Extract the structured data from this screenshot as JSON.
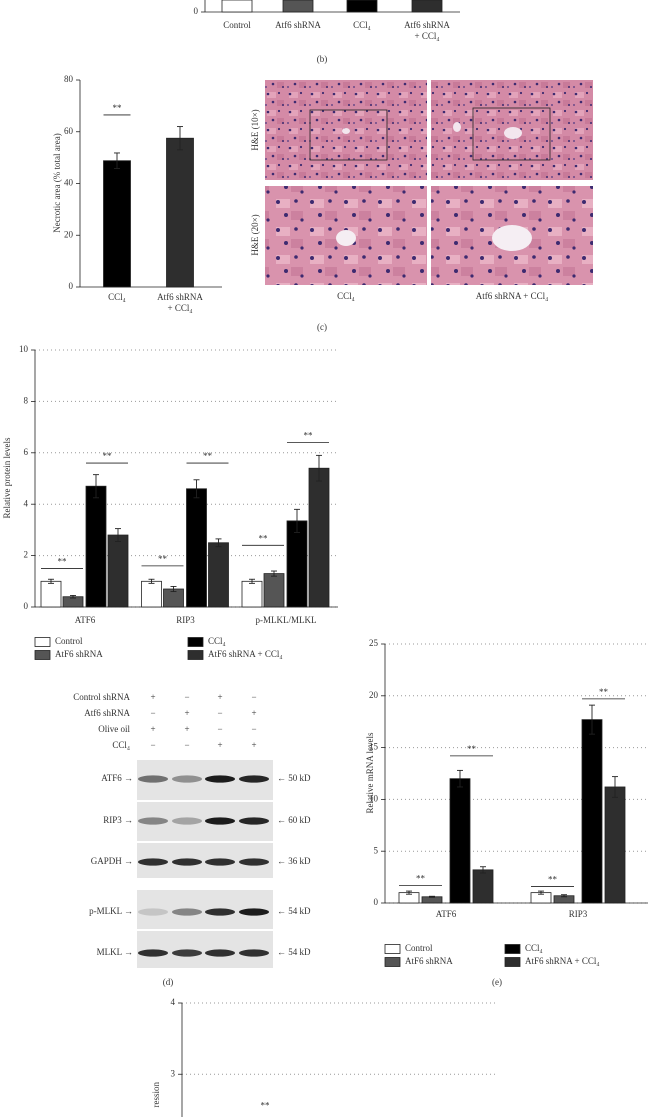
{
  "chart_data": [
    {
      "type": "bar",
      "panel_label": "(b)",
      "categories": [
        [
          "Control"
        ],
        [
          "Atf6 shRNA"
        ],
        [
          "CCl₄"
        ],
        [
          "Atf6 shRNA",
          "+ CCl₄"
        ]
      ],
      "yticks": [
        0
      ],
      "colors": [
        "#ffffff",
        "#555555",
        "#000000",
        "#2e2e2e"
      ]
    },
    {
      "type": "bar",
      "panel_label": "(c)",
      "ylabel": "Necrotic area (% total area)",
      "categories": [
        [
          "CCl₄"
        ],
        [
          "Atf6 shRNA",
          "+ CCl₄"
        ]
      ],
      "values": [
        48.8,
        57.5
      ],
      "errors": [
        3.0,
        4.5
      ],
      "colors": [
        "#000000",
        "#2e2e2e"
      ],
      "ylim": [
        0,
        80
      ],
      "yticks": [
        0,
        20,
        40,
        60,
        80
      ],
      "significance": [
        {
          "label": "**",
          "y": 66.5,
          "bars": [
            0,
            1
          ]
        }
      ]
    },
    {
      "type": "bar",
      "ylabel": "Relative protein levels",
      "categories": [
        "ATF6",
        "RIP3",
        "p-MLKL/MLKL"
      ],
      "series": [
        {
          "name": "Control",
          "color": "#ffffff",
          "values": [
            1.0,
            1.0,
            1.0
          ],
          "errors": [
            0.08,
            0.08,
            0.08
          ]
        },
        {
          "name": "AtF6 shRNA",
          "color": "#555555",
          "values": [
            0.4,
            0.7,
            1.3
          ],
          "errors": [
            0.05,
            0.1,
            0.1
          ]
        },
        {
          "name": "CCl₄",
          "color": "#000000",
          "values": [
            4.7,
            4.6,
            3.35
          ],
          "errors": [
            0.45,
            0.35,
            0.45
          ]
        },
        {
          "name": "AtF6 shRNA + CCl₄",
          "color": "#2e2e2e",
          "values": [
            2.8,
            2.5,
            5.4
          ],
          "errors": [
            0.25,
            0.15,
            0.5
          ]
        }
      ],
      "ylim": [
        0,
        10
      ],
      "yticks": [
        0,
        2,
        4,
        6,
        8,
        10
      ],
      "grid": true,
      "significance": [
        {
          "label": "**",
          "y": 1.5,
          "group": 0,
          "bars": [
            0,
            1
          ]
        },
        {
          "label": "**",
          "y": 5.6,
          "group": 0,
          "bars": [
            2,
            3
          ]
        },
        {
          "label": "**",
          "y": 1.6,
          "group": 1,
          "bars": [
            0,
            1
          ]
        },
        {
          "label": "**",
          "y": 5.6,
          "group": 1,
          "bars": [
            2,
            3
          ]
        },
        {
          "label": "**",
          "y": 2.4,
          "group": 2,
          "bars": [
            0,
            1
          ]
        },
        {
          "label": "**",
          "y": 6.4,
          "group": 2,
          "bars": [
            2,
            3
          ]
        }
      ]
    },
    {
      "type": "bar",
      "panel_label": "(e)",
      "ylabel": "Relative mRNA levels",
      "categories": [
        "ATF6",
        "RIP3"
      ],
      "series": [
        {
          "name": "Control",
          "color": "#ffffff",
          "values": [
            1.0,
            1.0
          ],
          "errors": [
            0.15,
            0.15
          ]
        },
        {
          "name": "AtF6 shRNA",
          "color": "#555555",
          "values": [
            0.6,
            0.7
          ],
          "errors": [
            0.05,
            0.1
          ]
        },
        {
          "name": "CCl₄",
          "color": "#000000",
          "values": [
            12.0,
            17.7
          ],
          "errors": [
            0.8,
            1.4
          ]
        },
        {
          "name": "AtF6 shRNA + CCl₄",
          "color": "#2e2e2e",
          "values": [
            3.2,
            11.2
          ],
          "errors": [
            0.3,
            1.0
          ]
        }
      ],
      "ylim": [
        0,
        25
      ],
      "yticks": [
        0,
        5,
        10,
        15,
        20,
        25
      ],
      "grid": true,
      "significance": [
        {
          "label": "**",
          "y": 1.7,
          "group": 0,
          "bars": [
            0,
            1
          ]
        },
        {
          "label": "**",
          "y": 14.2,
          "group": 0,
          "bars": [
            2,
            3
          ]
        },
        {
          "label": "**",
          "y": 1.6,
          "group": 1,
          "bars": [
            0,
            1
          ]
        },
        {
          "label": "**",
          "y": 19.7,
          "group": 1,
          "bars": [
            2,
            3
          ]
        }
      ]
    },
    {
      "type": "bar",
      "ylabel": "ression",
      "ylim": [
        2.4,
        4
      ],
      "yticks": [
        3,
        4
      ],
      "grid": true,
      "annotations": [
        {
          "text": "**",
          "y": 2.55
        }
      ]
    }
  ],
  "figure": {
    "histology": {
      "row_labels": [
        "H&E (10×)",
        "H&E (20×)"
      ],
      "column_labels": [
        "CCl₄",
        "Atf6 shRNA + CCl₄"
      ]
    },
    "blot": {
      "panel_label": "(d)",
      "treatments": [
        {
          "label": "Control shRNA",
          "signs": [
            "+",
            "−",
            "+",
            "−"
          ]
        },
        {
          "label": "Atf6 shRNA",
          "signs": [
            "−",
            "+",
            "−",
            "+"
          ]
        },
        {
          "label": "Olive oil",
          "signs": [
            "+",
            "+",
            "−",
            "−"
          ]
        },
        {
          "label": "CCl₄",
          "signs": [
            "−",
            "−",
            "+",
            "+"
          ]
        }
      ],
      "bands": [
        {
          "label": "ATF6 →",
          "size": "← 50 kD"
        },
        {
          "label": "RIP3 →",
          "size": "← 60 kD"
        },
        {
          "label": "GAPDH →",
          "size": "← 36 kD"
        },
        {
          "label": "p-MLKL →",
          "size": "← 54 kD"
        },
        {
          "label": "MLKL →",
          "size": "← 54 kD"
        }
      ]
    }
  }
}
